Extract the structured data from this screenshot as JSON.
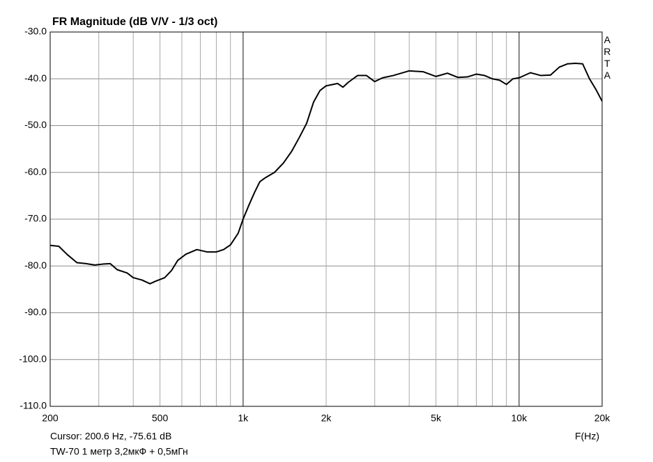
{
  "chart_data": {
    "type": "line",
    "title": "FR Magnitude (dB V/V - 1/3 oct)",
    "side_label": "ARTA",
    "xlabel": "F(Hz)",
    "cursor_text": "Cursor: 200.6 Hz, -75.61 dB",
    "caption": "TW-70 1 метр 3,2мкФ + 0,5мГн",
    "xscale": "log",
    "grid": true,
    "xlim": [
      200,
      20000
    ],
    "xticks": [
      200,
      500,
      {
        "value": 1000,
        "label": "1k"
      },
      {
        "value": 2000,
        "label": "2k"
      },
      {
        "value": 5000,
        "label": "5k"
      },
      {
        "value": 10000,
        "label": "10k"
      },
      {
        "value": 20000,
        "label": "20k"
      }
    ],
    "xminorticks": [
      300,
      400,
      600,
      700,
      800,
      900,
      3000,
      4000,
      6000,
      7000,
      8000,
      9000
    ],
    "ylim": [
      -110,
      -30
    ],
    "yticks": [
      {
        "value": -30,
        "label": "-30.0"
      },
      {
        "value": -40,
        "label": "-40.0"
      },
      {
        "value": -50,
        "label": "-50.0"
      },
      {
        "value": -60,
        "label": "-60.0"
      },
      {
        "value": -70,
        "label": "-70.0"
      },
      {
        "value": -80,
        "label": "-80.0"
      },
      {
        "value": -90,
        "label": "-90.0"
      },
      {
        "value": -100,
        "label": "-100.0"
      },
      {
        "value": -110,
        "label": "-110.0"
      }
    ],
    "color": "#000000",
    "x": [
      200,
      215,
      230,
      250,
      270,
      290,
      310,
      330,
      350,
      380,
      400,
      430,
      460,
      480,
      520,
      550,
      580,
      620,
      680,
      740,
      800,
      850,
      900,
      960,
      1000,
      1050,
      1100,
      1150,
      1200,
      1300,
      1400,
      1500,
      1600,
      1700,
      1800,
      1900,
      2000,
      2200,
      2300,
      2400,
      2600,
      2800,
      3000,
      3200,
      3500,
      4000,
      4500,
      5000,
      5500,
      6000,
      6500,
      7000,
      7500,
      8000,
      8500,
      9000,
      9500,
      10000,
      11000,
      12000,
      13000,
      14000,
      15000,
      16000,
      17000,
      18000,
      19000,
      20000
    ],
    "values": [
      -75.6,
      -75.8,
      -77.5,
      -79.3,
      -79.5,
      -79.8,
      -79.6,
      -79.5,
      -80.8,
      -81.5,
      -82.5,
      -83.0,
      -83.8,
      -83.3,
      -82.5,
      -81.0,
      -78.8,
      -77.5,
      -76.5,
      -77.0,
      -77.0,
      -76.5,
      -75.5,
      -73.0,
      -70.0,
      -67.0,
      -64.3,
      -62.0,
      -61.2,
      -60.0,
      -58.0,
      -55.5,
      -52.5,
      -49.5,
      -45.0,
      -42.5,
      -41.5,
      -41.0,
      -41.8,
      -40.8,
      -39.3,
      -39.3,
      -40.6,
      -39.8,
      -39.3,
      -38.3,
      -38.5,
      -39.5,
      -38.8,
      -39.7,
      -39.6,
      -39.0,
      -39.3,
      -40.0,
      -40.3,
      -41.2,
      -40.0,
      -39.8,
      -38.7,
      -39.3,
      -39.2,
      -37.5,
      -36.8,
      -36.7,
      -36.8,
      -40.0,
      -42.3,
      -44.8
    ]
  }
}
